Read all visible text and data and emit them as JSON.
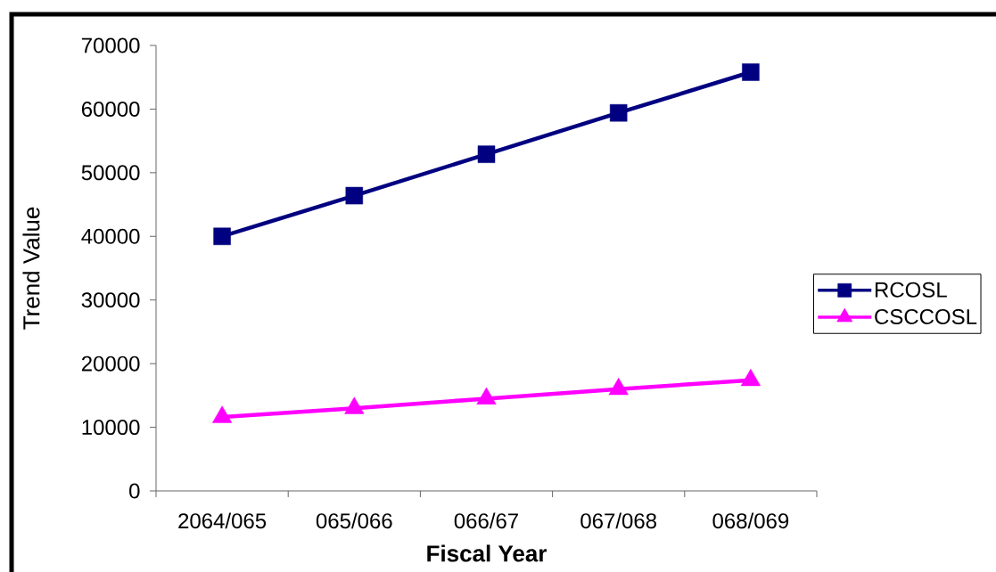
{
  "chart_data": {
    "type": "line",
    "xlabel": "Fiscal Year",
    "ylabel": "Trend Value",
    "categories": [
      "2064/065",
      "065/066",
      "066/67",
      "067/068",
      "068/069"
    ],
    "series": [
      {
        "name": "RCOSL",
        "color": "#000080",
        "marker": "square",
        "values": [
          40000,
          46400,
          52900,
          59400,
          65800
        ]
      },
      {
        "name": "CSCCOSL",
        "color": "#ff00ff",
        "marker": "triangle",
        "values": [
          11600,
          13000,
          14500,
          16000,
          17400
        ]
      }
    ],
    "ylim": [
      0,
      70000
    ],
    "yticks": [
      0,
      10000,
      20000,
      30000,
      40000,
      50000,
      60000,
      70000
    ],
    "legend": "right",
    "line_style": "solid"
  }
}
